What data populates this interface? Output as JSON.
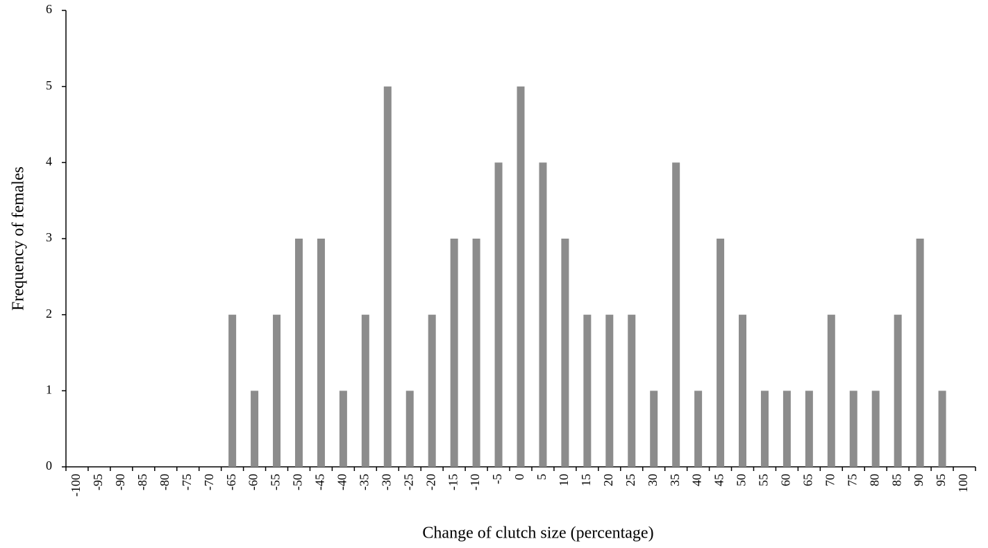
{
  "chart_data": {
    "type": "bar",
    "x_label": "Change of clutch size (percentage)",
    "y_label": "Frequency of females",
    "categories": [
      "-100",
      "-95",
      "-90",
      "-85",
      "-80",
      "-75",
      "-70",
      "-65",
      "-60",
      "-55",
      "-50",
      "-45",
      "-40",
      "-35",
      "-30",
      "-25",
      "-20",
      "-15",
      "-10",
      "-5",
      "0",
      "5",
      "10",
      "15",
      "20",
      "25",
      "30",
      "35",
      "40",
      "45",
      "50",
      "55",
      "60",
      "65",
      "70",
      "75",
      "80",
      "85",
      "90",
      "95",
      "100"
    ],
    "values": [
      0,
      0,
      0,
      0,
      0,
      0,
      0,
      2,
      1,
      2,
      3,
      3,
      1,
      2,
      5,
      1,
      2,
      3,
      3,
      4,
      5,
      4,
      3,
      2,
      2,
      2,
      1,
      4,
      1,
      3,
      2,
      1,
      1,
      1,
      2,
      1,
      1,
      2,
      3,
      1,
      0
    ],
    "color": "#8c8c8c",
    "ylim": [
      0,
      6
    ],
    "yticks": [
      0,
      1,
      2,
      3,
      4,
      5,
      6
    ],
    "grid": false
  }
}
